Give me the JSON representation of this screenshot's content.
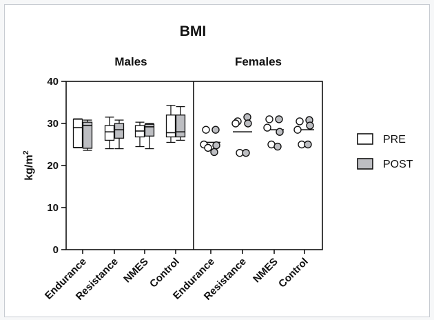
{
  "chart_data": {
    "type": "box-and-scatter",
    "title": "BMI",
    "ylabel": "kg/m",
    "ylabel_superscript": "2",
    "ylim": [
      0,
      40
    ],
    "yticks": [
      "0",
      "10",
      "20",
      "30",
      "40"
    ],
    "groups": [
      {
        "name": "Males",
        "kind": "box",
        "categories": [
          "Endurance",
          "Resistance",
          "NMES",
          "Control"
        ],
        "boxes": [
          {
            "pre": {
              "min": 24.2,
              "q1": 24.3,
              "median": 29.0,
              "q3": 31.0,
              "max": 31.1
            },
            "post": {
              "min": 23.6,
              "q1": 24.1,
              "median": 29.5,
              "q3": 30.3,
              "max": 30.8
            }
          },
          {
            "pre": {
              "min": 24.0,
              "q1": 26.0,
              "median": 28.0,
              "q3": 29.5,
              "max": 31.5
            },
            "post": {
              "min": 24.0,
              "q1": 26.5,
              "median": 28.5,
              "q3": 30.0,
              "max": 30.8
            }
          },
          {
            "pre": {
              "min": 24.5,
              "q1": 26.8,
              "median": 28.2,
              "q3": 29.5,
              "max": 30.3
            },
            "post": {
              "min": 24.0,
              "q1": 27.0,
              "median": 29.2,
              "q3": 29.8,
              "max": 30.0
            }
          },
          {
            "pre": {
              "min": 25.5,
              "q1": 26.8,
              "median": 27.8,
              "q3": 32.0,
              "max": 34.3
            },
            "post": {
              "min": 26.0,
              "q1": 26.8,
              "median": 28.0,
              "q3": 32.0,
              "max": 34.0
            }
          }
        ]
      },
      {
        "name": "Females",
        "kind": "scatter",
        "categories": [
          "Endurance",
          "Resistance",
          "NMES",
          "Control"
        ],
        "points": [
          {
            "pre": [
              28.5,
              25.0,
              24.2
            ],
            "post": [
              28.5,
              24.8,
              23.2
            ],
            "median": 25.5
          },
          {
            "pre": [
              30.5,
              30.0,
              23.0
            ],
            "post": [
              31.5,
              30.0,
              23.0
            ],
            "median": 28.0
          },
          {
            "pre": [
              31.0,
              29.0,
              25.0
            ],
            "post": [
              31.0,
              28.0,
              24.5
            ],
            "median": 28.5
          },
          {
            "pre": [
              30.5,
              28.5,
              25.0
            ],
            "post": [
              30.8,
              29.5,
              25.0
            ],
            "median": 28.5
          }
        ]
      }
    ],
    "legend": {
      "position": "right",
      "entries": [
        {
          "name": "PRE",
          "color": "#ffffff"
        },
        {
          "name": "POST",
          "color": "#bdbec2"
        }
      ]
    },
    "grid": false
  }
}
